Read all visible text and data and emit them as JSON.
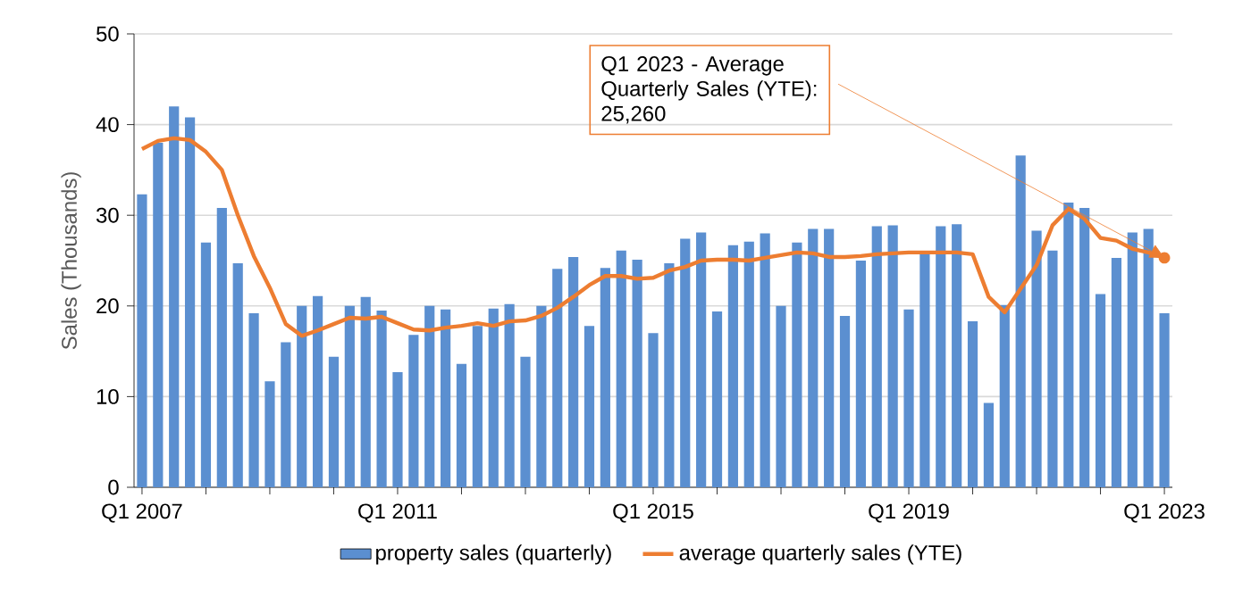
{
  "chart_data": {
    "type": "bar",
    "ylabel": "Sales (Thousands)",
    "categories": [
      "Q1 2007",
      null,
      null,
      null,
      null,
      null,
      null,
      null,
      null,
      null,
      null,
      null,
      null,
      null,
      null,
      null,
      "Q1 2011",
      null,
      null,
      null,
      null,
      null,
      null,
      null,
      null,
      null,
      null,
      null,
      null,
      null,
      null,
      null,
      "Q1 2015",
      null,
      null,
      null,
      null,
      null,
      null,
      null,
      null,
      null,
      null,
      null,
      null,
      null,
      null,
      null,
      "Q1 2019",
      null,
      null,
      null,
      null,
      null,
      null,
      null,
      null,
      null,
      null,
      null,
      null,
      null,
      null,
      null,
      "Q1 2023"
    ],
    "series": [
      {
        "name": "property sales (quarterly)",
        "color": "#5b8fd0",
        "values": [
          32.3,
          38,
          42,
          40.8,
          27,
          30.8,
          24.7,
          19.2,
          11.7,
          16,
          20,
          21.1,
          14.4,
          20,
          21,
          19.5,
          12.7,
          16.8,
          20,
          19.6,
          13.6,
          17.8,
          19.7,
          20.2,
          14.4,
          20,
          24.1,
          25.4,
          17.8,
          24.2,
          26.1,
          25.1,
          17,
          24.7,
          27.4,
          28.1,
          19.4,
          26.7,
          27.1,
          28,
          20,
          27,
          28.5,
          28.5,
          18.9,
          25,
          28.8,
          28.9,
          19.6,
          25.9,
          28.8,
          29,
          18.3,
          9.3,
          20.1,
          36.6,
          28.3,
          26.1,
          31.4,
          30.8,
          21.3,
          25.3,
          28.1,
          28.5,
          19.2
        ]
      },
      {
        "name": "average quarterly sales (YTE)",
        "type": "line",
        "color": "#ed7d31",
        "values": [
          37.3,
          38.2,
          38.5,
          38.3,
          37,
          35,
          30,
          25.5,
          22,
          18,
          16.7,
          17.3,
          18,
          18.7,
          18.6,
          18.8,
          18.1,
          17.4,
          17.3,
          17.6,
          17.8,
          18.1,
          17.8,
          18.3,
          18.4,
          18.9,
          19.8,
          21,
          22.3,
          23.3,
          23.3,
          23,
          23.1,
          23.9,
          24.3,
          25,
          25.1,
          25.1,
          25,
          25.3,
          25.6,
          25.9,
          25.8,
          25.4,
          25.4,
          25.5,
          25.7,
          25.8,
          25.9,
          25.9,
          25.9,
          25.9,
          25.7,
          21,
          19.3,
          21.9,
          24.5,
          28.9,
          30.7,
          29.6,
          27.5,
          27.2,
          26.3,
          25.9,
          25.3
        ]
      }
    ],
    "annotations": [
      {
        "text": "Q1 2023 - Average Quarterly Sales (YTE): 25,260",
        "x": "Q1 2023",
        "y": 25.3
      }
    ],
    "ylim": [
      0,
      50
    ],
    "yticks": [
      0,
      10,
      20,
      30,
      40,
      50
    ],
    "grid": "y",
    "legend": "bottom"
  }
}
